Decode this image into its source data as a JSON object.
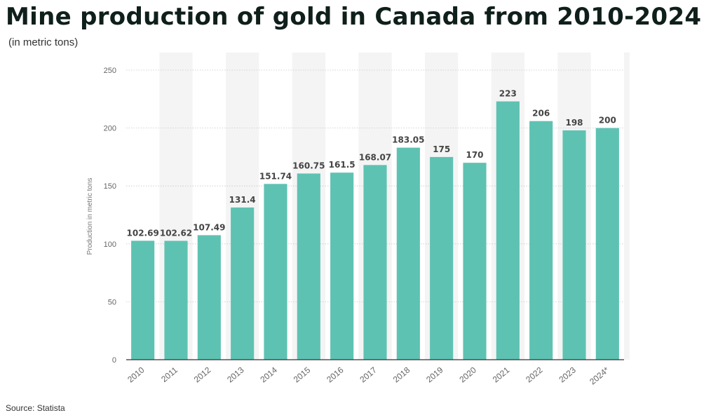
{
  "title": "Mine production of gold in Canada from 2010-2024",
  "subtitle": "(in metric tons)",
  "source": "Source: Statista",
  "chart_data": {
    "type": "bar",
    "categories": [
      "2010",
      "2011",
      "2012",
      "2013",
      "2014",
      "2015",
      "2016",
      "2017",
      "2018",
      "2019",
      "2020",
      "2021",
      "2022",
      "2023",
      "2024*"
    ],
    "values": [
      102.69,
      102.62,
      107.49,
      131.4,
      151.74,
      160.75,
      161.5,
      168.07,
      183.05,
      175,
      170,
      223,
      206,
      198,
      200
    ],
    "value_labels": [
      "102.69",
      "102.62",
      "107.49",
      "131.4",
      "151.74",
      "160.75",
      "161.5",
      "168.07",
      "183.05",
      "175",
      "170",
      "223",
      "206",
      "198",
      "200"
    ],
    "ylabel": "Production in metric tons",
    "xlabel": "",
    "ylim": [
      0,
      250
    ],
    "yticks": [
      0,
      50,
      100,
      150,
      200,
      250
    ],
    "grid": true,
    "bar_color": "#5ec2b2"
  }
}
